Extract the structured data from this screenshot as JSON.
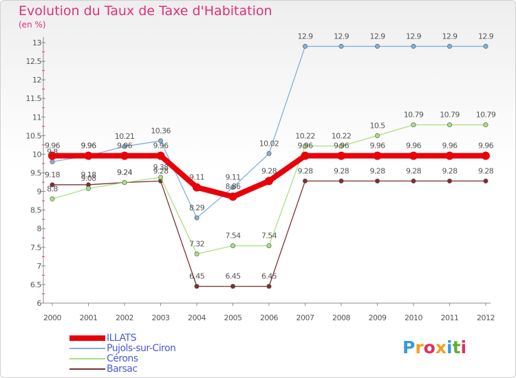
{
  "title": "Evolution du Taux de Taxe d'Habitation",
  "subtitle": "(en %)",
  "logo": {
    "text": "Proxiti",
    "letter_colors": [
      "#3a9ad9",
      "#f0a020",
      "#e03060",
      "#f0a020",
      "#3a9ad9",
      "#60b030",
      "#e03060"
    ]
  },
  "chart_data": {
    "type": "line",
    "title": "Evolution du Taux de Taxe d'Habitation",
    "ylabel": "(en %)",
    "ylim": [
      6,
      13
    ],
    "y_ticks": [
      "6",
      "6.5",
      "7",
      "7.5",
      "8",
      "8.5",
      "9",
      "9.5",
      "10",
      "10.5",
      "11",
      "11.5",
      "12",
      "12.5",
      "13"
    ],
    "x": [
      "2000",
      "2001",
      "2002",
      "2003",
      "2004",
      "2005",
      "2006",
      "2007",
      "2008",
      "2009",
      "2010",
      "2011",
      "2012"
    ],
    "grid": false,
    "legend_position": "bottom-left",
    "series": [
      {
        "name": "ILLATS",
        "color": "#e8000a",
        "values": [
          9.96,
          9.96,
          9.96,
          9.96,
          9.11,
          8.86,
          9.28,
          9.96,
          9.96,
          9.96,
          9.96,
          9.96,
          9.96
        ],
        "labels": [
          "9.96",
          "9.96",
          "9.96",
          "9.96",
          "9.11",
          "8.86",
          "9.28",
          "9.96",
          "9.96",
          "9.96",
          "9.96",
          "9.96",
          "9.96"
        ]
      },
      {
        "name": "Pujols-sur-Ciron",
        "color": "#7fb0d8",
        "values": [
          9.8,
          9.96,
          10.21,
          10.36,
          8.29,
          9.11,
          10.02,
          12.9,
          12.9,
          12.9,
          12.9,
          12.9,
          12.9
        ],
        "labels": [
          "9.8",
          "9.96",
          "10.21",
          "10.36",
          "8.29",
          "9.11",
          "10.02",
          "12.9",
          "12.9",
          "12.9",
          "12.9",
          "12.9",
          "12.9"
        ]
      },
      {
        "name": "Cérons",
        "color": "#a8e080",
        "values": [
          8.8,
          9.08,
          9.24,
          9.38,
          7.32,
          7.54,
          7.54,
          10.22,
          10.22,
          10.5,
          10.79,
          10.79,
          10.79
        ],
        "labels": [
          "8.8",
          "9.08",
          "9.24",
          "9.38",
          "7.32",
          "7.54",
          "7.54",
          "10.22",
          "10.22",
          "10.5",
          "10.79",
          "10.79",
          "10.79"
        ]
      },
      {
        "name": "Barsac",
        "color": "#7a3030",
        "values": [
          9.18,
          9.18,
          9.24,
          9.28,
          6.45,
          6.45,
          6.45,
          9.28,
          9.28,
          9.28,
          9.28,
          9.28,
          9.28
        ],
        "labels": [
          "9.18",
          "9.18",
          "9.24",
          "9.28",
          "6.45",
          "6.45",
          "6.45",
          "9.28",
          "9.28",
          "9.28",
          "9.28",
          "9.28",
          "9.28"
        ]
      }
    ]
  }
}
